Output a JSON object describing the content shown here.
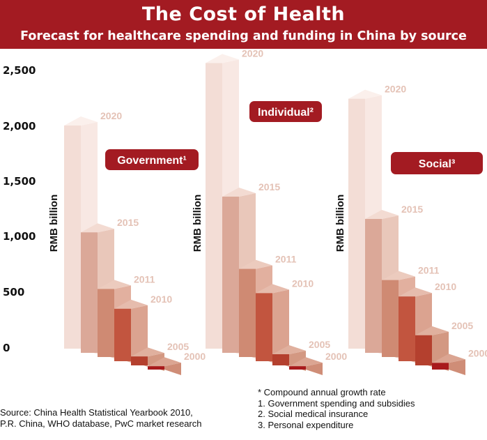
{
  "header": {
    "title": "The Cost of Health",
    "subtitle": "Forecast for healthcare spending and funding in China by source"
  },
  "chart_data": [
    {
      "type": "bar",
      "title": "Government¹",
      "ylabel": "RMB billion",
      "categories": [
        "2020",
        "2015",
        "2011",
        "2010",
        "2005",
        "2000"
      ],
      "values": [
        2000,
        1080,
        610,
        470,
        80,
        30
      ],
      "ylim": [
        0,
        2500
      ]
    },
    {
      "type": "bar",
      "title": "Individual²",
      "ylabel": "RMB billion",
      "categories": [
        "2020",
        "2015",
        "2011",
        "2010",
        "2005",
        "2000"
      ],
      "values": [
        2560,
        1400,
        790,
        610,
        100,
        30
      ],
      "ylim": [
        0,
        2500
      ]
    },
    {
      "type": "bar",
      "title": "Social³",
      "ylabel": "RMB billion",
      "categories": [
        "2020",
        "2015",
        "2011",
        "2010",
        "2005",
        "2000"
      ],
      "values": [
        2240,
        1200,
        690,
        580,
        270,
        60
      ],
      "ylim": [
        0,
        2500
      ]
    }
  ],
  "y_ticks": [
    "2,500",
    "2,000",
    "1,500",
    "1,000",
    "500",
    "0"
  ],
  "colors": {
    "banner": "#a31b22",
    "label_bg": "#a31b22",
    "front": [
      "#f3ddd6",
      "#dba898",
      "#cf8a73",
      "#c2553f",
      "#b4402e",
      "#a81a1c"
    ],
    "side": [
      "#f8e8e3",
      "#e9c7ba",
      "#e2b09f",
      "#dba390",
      "#d39882",
      "#cf8d77"
    ],
    "top": [
      "#fbf0ec",
      "#f3dbd2",
      "#eccbbe",
      "#e6bcad",
      "#e0b09e",
      "#dba592"
    ],
    "year_label": "#e4c2b6"
  },
  "footer": {
    "source_lines": [
      "Source: China Health Statistical Yearbook 2010,",
      "P.R. China, WHO database, PwC market research"
    ],
    "notes": [
      "* Compound annual growth rate",
      "1. Government spending and subsidies",
      "2. Social medical insurance",
      "3. Personal expenditure"
    ]
  }
}
